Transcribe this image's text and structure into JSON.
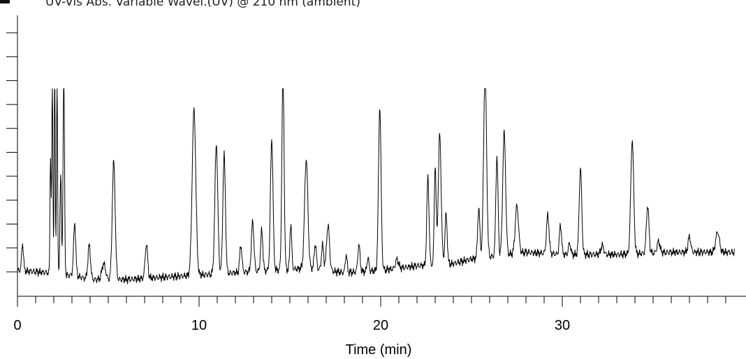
{
  "chart_data": {
    "type": "line",
    "title": "UV-Vis Abs. Variable Wavel.(UV) @ 210 nm (ambient)",
    "xlabel": "Time (min)",
    "ylabel": "",
    "xlim": [
      0,
      39.5
    ],
    "ylim": [
      0,
      100
    ],
    "xticks": [
      0,
      10,
      20,
      30
    ],
    "xtick_labels": [
      "0",
      "10",
      "20",
      "30"
    ],
    "series": [
      {
        "name": "",
        "baseline": [
          [
            0.0,
            8
          ],
          [
            1.7,
            7
          ],
          [
            1.8,
            5
          ],
          [
            3.0,
            6
          ],
          [
            4.0,
            4
          ],
          [
            6.0,
            4
          ],
          [
            8.0,
            5
          ],
          [
            10.0,
            6
          ],
          [
            12.0,
            7
          ],
          [
            14.0,
            8
          ],
          [
            16.0,
            9
          ],
          [
            18.0,
            7
          ],
          [
            20.0,
            8
          ],
          [
            22.0,
            10
          ],
          [
            24.0,
            11
          ],
          [
            25.0,
            13
          ],
          [
            26.0,
            14
          ],
          [
            27.0,
            15
          ],
          [
            28.0,
            16
          ],
          [
            30.0,
            15
          ],
          [
            33.0,
            15
          ],
          [
            36.0,
            16
          ],
          [
            39.5,
            16
          ]
        ],
        "peaks": [
          [
            0.28,
            12,
            0.05
          ],
          [
            1.82,
            54,
            0.03
          ],
          [
            1.92,
            88,
            0.03
          ],
          [
            2.05,
            86,
            0.03
          ],
          [
            2.18,
            88,
            0.03
          ],
          [
            2.38,
            45,
            0.04
          ],
          [
            2.55,
            88,
            0.04
          ],
          [
            3.15,
            23,
            0.06
          ],
          [
            3.95,
            15,
            0.07
          ],
          [
            4.75,
            7,
            0.1
          ],
          [
            5.3,
            52,
            0.08
          ],
          [
            7.1,
            15,
            0.07
          ],
          [
            9.72,
            73,
            0.1
          ],
          [
            10.95,
            57,
            0.08
          ],
          [
            11.38,
            52,
            0.07
          ],
          [
            12.3,
            12,
            0.06
          ],
          [
            12.95,
            22,
            0.07
          ],
          [
            13.45,
            18,
            0.06
          ],
          [
            14.0,
            58,
            0.07
          ],
          [
            14.62,
            88,
            0.06
          ],
          [
            15.05,
            20,
            0.05
          ],
          [
            15.9,
            48,
            0.09
          ],
          [
            16.4,
            11,
            0.06
          ],
          [
            16.8,
            11,
            0.06
          ],
          [
            17.1,
            20,
            0.08
          ],
          [
            18.1,
            8,
            0.05
          ],
          [
            18.8,
            12,
            0.06
          ],
          [
            19.3,
            6,
            0.05
          ],
          [
            19.95,
            72,
            0.07
          ],
          [
            20.9,
            4,
            0.08
          ],
          [
            22.6,
            39,
            0.06
          ],
          [
            23.0,
            44,
            0.05
          ],
          [
            23.25,
            57,
            0.08
          ],
          [
            23.6,
            22,
            0.06
          ],
          [
            25.4,
            22,
            0.06
          ],
          [
            25.75,
            84,
            0.08
          ],
          [
            26.4,
            44,
            0.06
          ],
          [
            26.8,
            54,
            0.08
          ],
          [
            27.5,
            21,
            0.09
          ],
          [
            29.2,
            17,
            0.07
          ],
          [
            29.9,
            13,
            0.06
          ],
          [
            30.4,
            5,
            0.06
          ],
          [
            31.0,
            38,
            0.07
          ],
          [
            32.2,
            4,
            0.08
          ],
          [
            33.85,
            50,
            0.08
          ],
          [
            34.7,
            21,
            0.07
          ],
          [
            35.3,
            5,
            0.08
          ],
          [
            37.0,
            7,
            0.07
          ],
          [
            38.55,
            9,
            0.1
          ]
        ]
      }
    ],
    "grid": false,
    "legend": "none"
  },
  "colors": {
    "trace": "#000000",
    "axis": "#000000",
    "text": "#000000"
  }
}
